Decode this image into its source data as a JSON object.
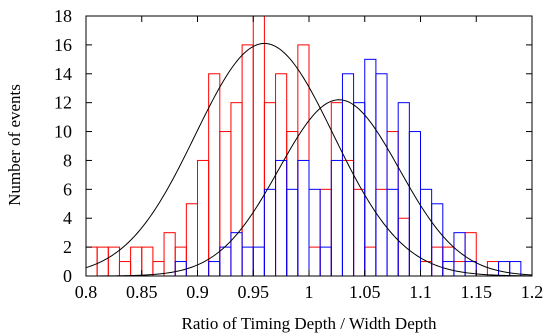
{
  "chart_data": {
    "type": "bar",
    "xlabel": "Ratio of Timing Depth / Width Depth",
    "ylabel": "Number of events",
    "xlim": [
      0.8,
      1.2
    ],
    "ylim": [
      0,
      18
    ],
    "xticks": [
      "0.8",
      "0.85",
      "0.9",
      "0.95",
      "1",
      "1.05",
      "1.1",
      "1.15",
      "1.2"
    ],
    "yticks": [
      "0",
      "2",
      "4",
      "6",
      "8",
      "10",
      "12",
      "14",
      "16",
      "18"
    ],
    "bin_width": 0.01,
    "grid": false,
    "legend": "none",
    "series": [
      {
        "color": "#ff0000",
        "bin_starts": [
          0.8,
          0.81,
          0.82,
          0.83,
          0.84,
          0.85,
          0.86,
          0.87,
          0.88,
          0.89,
          0.9,
          0.91,
          0.92,
          0.93,
          0.94,
          0.95,
          0.96,
          0.97,
          0.98,
          0.99,
          1.0,
          1.01,
          1.02,
          1.03,
          1.04,
          1.05,
          1.06,
          1.07,
          1.08,
          1.09,
          1.1,
          1.11,
          1.12,
          1.13,
          1.14,
          1.15,
          1.16,
          1.17,
          1.18,
          1.19
        ],
        "values": [
          2,
          2,
          2,
          1,
          2,
          2,
          1,
          3,
          2,
          5,
          8,
          14,
          10,
          12,
          16,
          18,
          12,
          14,
          10,
          16,
          2,
          6,
          12,
          8,
          6,
          2,
          6,
          10,
          4,
          0,
          1,
          2,
          2,
          1,
          3,
          0,
          1,
          0,
          0,
          0
        ]
      },
      {
        "color": "#0000ff",
        "bin_starts": [
          0.8,
          0.81,
          0.82,
          0.83,
          0.84,
          0.85,
          0.86,
          0.87,
          0.88,
          0.89,
          0.9,
          0.91,
          0.92,
          0.93,
          0.94,
          0.95,
          0.96,
          0.97,
          0.98,
          0.99,
          1.0,
          1.01,
          1.02,
          1.03,
          1.04,
          1.05,
          1.06,
          1.07,
          1.08,
          1.09,
          1.1,
          1.11,
          1.12,
          1.13,
          1.14,
          1.15,
          1.16,
          1.17,
          1.18,
          1.19
        ],
        "values": [
          0,
          0,
          0,
          0,
          0,
          0,
          0,
          0,
          1,
          0,
          0,
          1,
          2,
          3,
          2,
          2,
          6,
          8,
          6,
          8,
          6,
          2,
          8,
          14,
          12,
          15,
          14,
          6,
          12,
          10,
          6,
          5,
          1,
          3,
          1,
          0,
          0,
          1,
          1,
          0
        ]
      }
    ],
    "fits": [
      {
        "type": "gaussian",
        "color": "#000000",
        "amplitude": 16.1,
        "mean": 0.96,
        "sigma": 0.062
      },
      {
        "type": "gaussian",
        "color": "#000000",
        "amplitude": 12.2,
        "mean": 1.027,
        "sigma": 0.054
      }
    ]
  }
}
